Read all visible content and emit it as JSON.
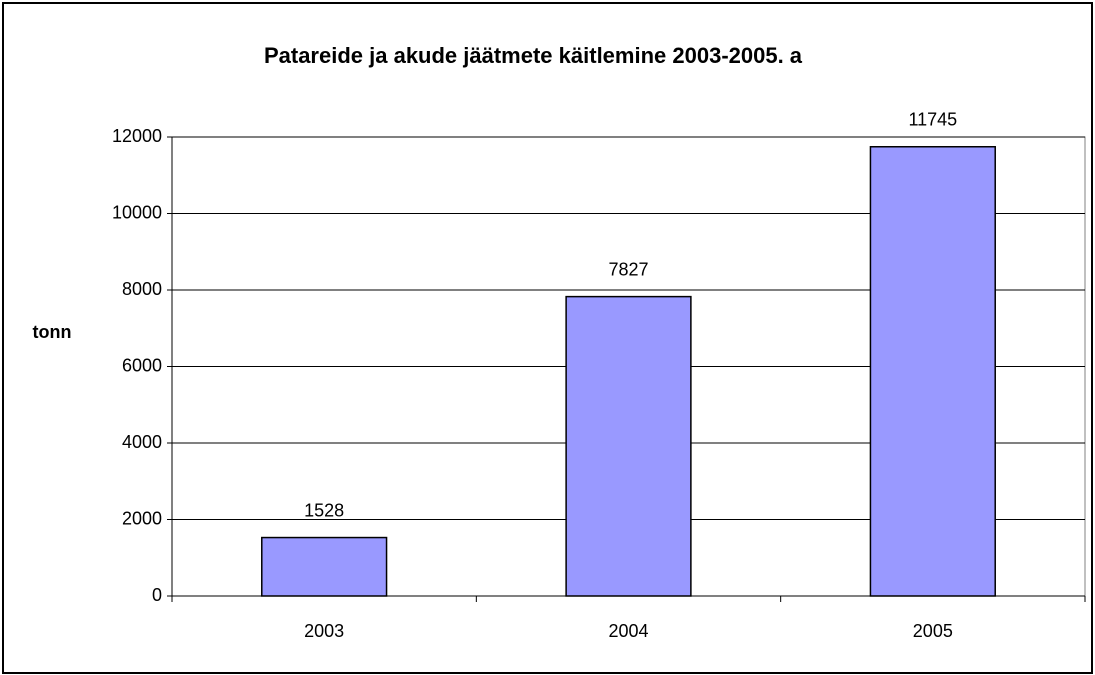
{
  "chart_data": {
    "type": "bar",
    "title": "Patareide ja akude jäätmete käitlemine 2003-2005. a",
    "y_label": "tonn",
    "categories": [
      "2003",
      "2004",
      "2005"
    ],
    "values": [
      1528,
      7827,
      11745
    ],
    "color": "#9999ff",
    "ylim": [
      0,
      12000
    ],
    "yticks": [
      0,
      2000,
      4000,
      6000,
      8000,
      10000,
      12000
    ],
    "grid": true
  }
}
